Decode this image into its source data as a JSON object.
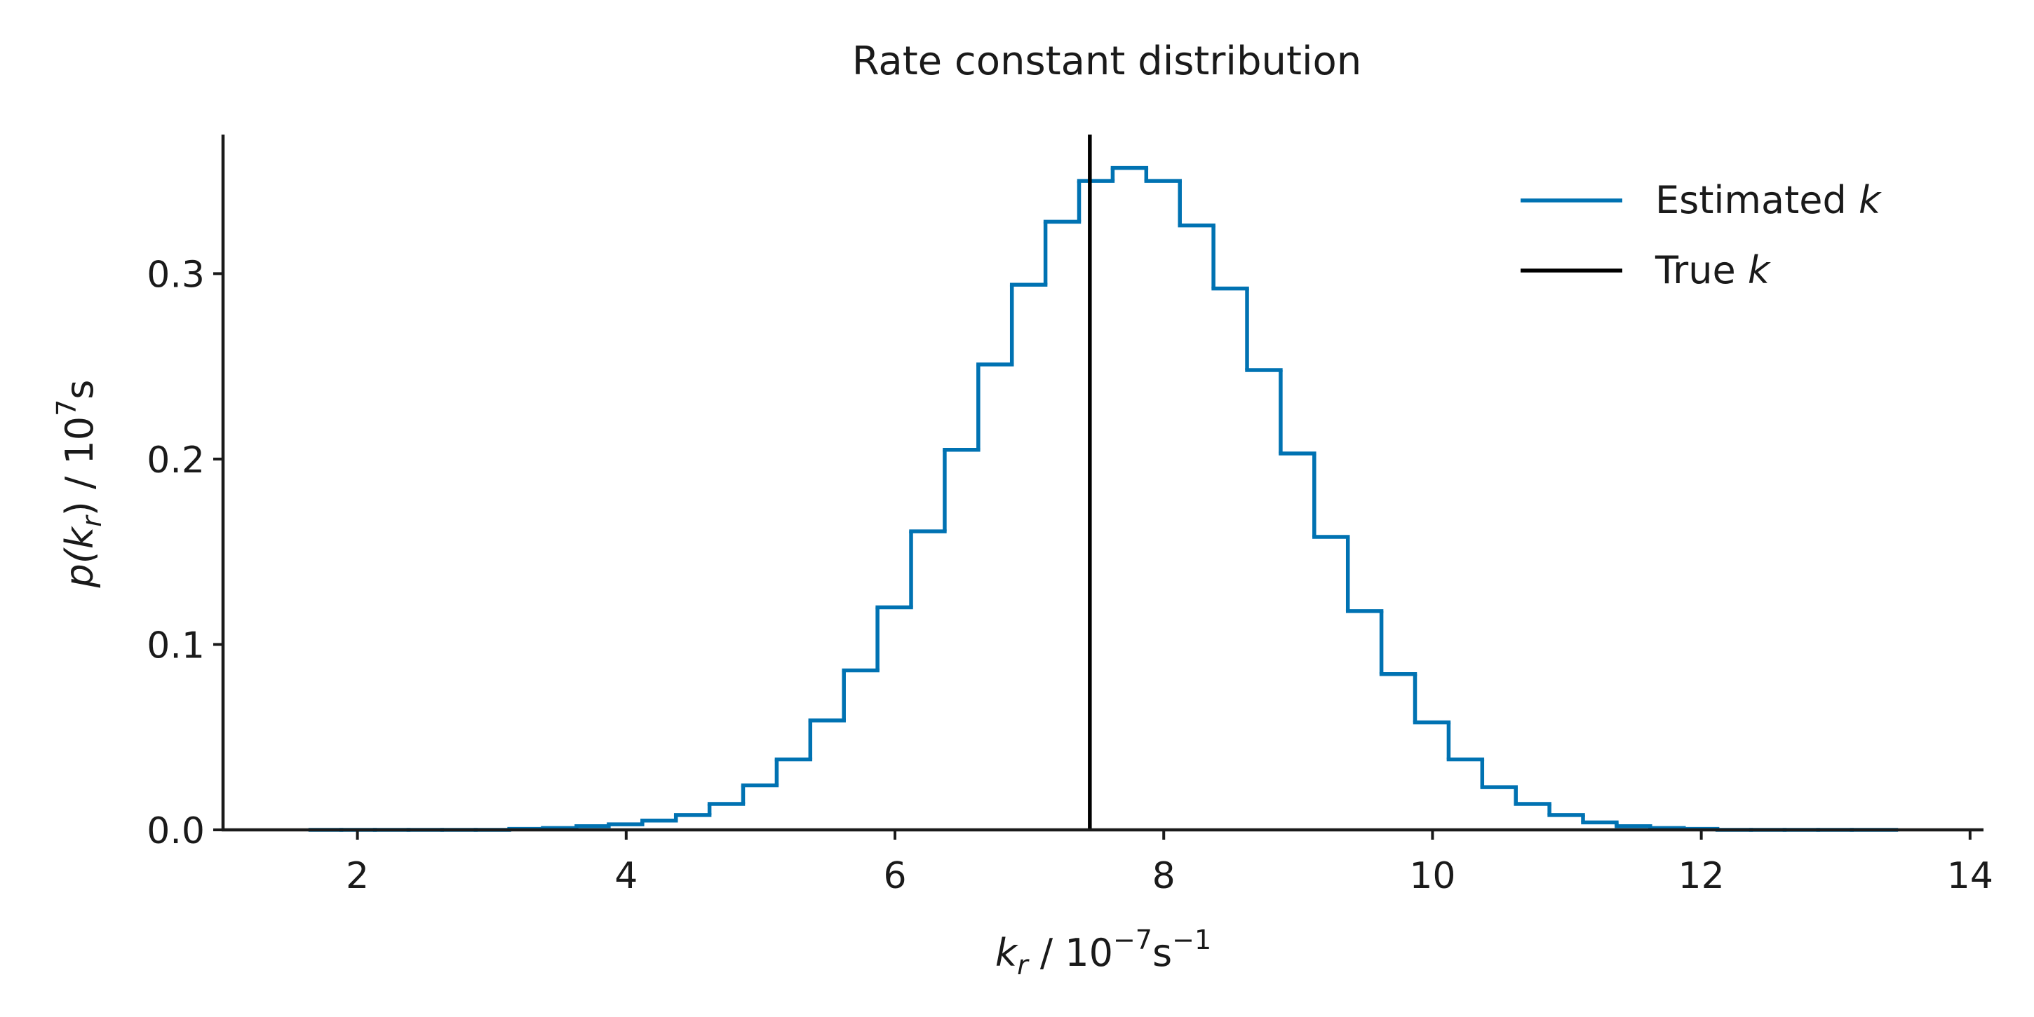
{
  "chart_data": {
    "type": "line",
    "style": "step-histogram",
    "title": "Rate constant distribution",
    "xlabel": {
      "var": "k",
      "sub": "r",
      "rest": " / 10",
      "sup": "−7",
      "unit": "s",
      "unit_sup": "−1"
    },
    "ylabel": {
      "pre": "p(",
      "var": "k",
      "sub": "r",
      "post": ") / 10",
      "sup": "7",
      "unit": "s"
    },
    "xlim": [
      1.0,
      14.1
    ],
    "ylim": [
      0.0,
      0.375
    ],
    "xticks": [
      "2",
      "4",
      "6",
      "8",
      "10",
      "12",
      "14"
    ],
    "xtick_values": [
      2,
      4,
      6,
      8,
      10,
      12,
      14
    ],
    "yticks": [
      "0.0",
      "0.1",
      "0.2",
      "0.3"
    ],
    "ytick_values": [
      0.0,
      0.1,
      0.2,
      0.3
    ],
    "grid": false,
    "legend_position": "top-right",
    "series": [
      {
        "name": "Estimated k",
        "legend": {
          "text": "Estimated ",
          "var": "k"
        },
        "color": "#0072b2",
        "bin_edges": [
          1.65,
          1.88,
          2.13,
          2.38,
          2.63,
          2.88,
          3.13,
          3.38,
          3.63,
          3.87,
          4.12,
          4.37,
          4.62,
          4.87,
          5.12,
          5.37,
          5.62,
          5.87,
          6.12,
          6.37,
          6.62,
          6.87,
          7.12,
          7.37,
          7.62,
          7.87,
          8.12,
          8.37,
          8.62,
          8.87,
          9.12,
          9.37,
          9.62,
          9.87,
          10.12,
          10.37,
          10.62,
          10.87,
          11.12,
          11.37,
          11.62,
          11.87,
          12.12,
          12.37,
          12.62,
          12.87,
          13.12,
          13.45
        ],
        "values": [
          0.0,
          0.0,
          0.0,
          0.0,
          0.0,
          0.0,
          0.0005,
          0.001,
          0.002,
          0.003,
          0.005,
          0.008,
          0.014,
          0.024,
          0.038,
          0.059,
          0.086,
          0.12,
          0.161,
          0.205,
          0.251,
          0.294,
          0.328,
          0.35,
          0.357,
          0.35,
          0.326,
          0.292,
          0.248,
          0.203,
          0.158,
          0.118,
          0.084,
          0.058,
          0.038,
          0.023,
          0.014,
          0.008,
          0.004,
          0.002,
          0.001,
          0.0005,
          0.0,
          0.0,
          0.0,
          0.0,
          0.0
        ]
      },
      {
        "name": "True k",
        "legend": {
          "text": "True ",
          "var": "k"
        },
        "color": "#000000",
        "vline_x": 7.45
      }
    ]
  }
}
